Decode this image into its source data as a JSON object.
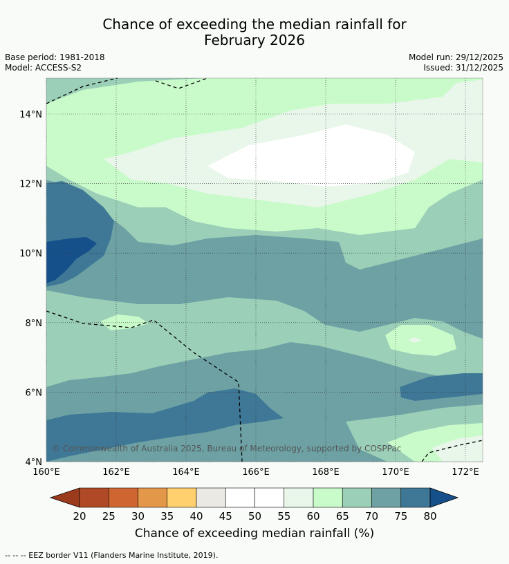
{
  "title_line1": "Chance of exceeding the median rainfall for",
  "title_line2": "February 2026",
  "base_period": "Base period: 1981-2018",
  "model": "Model: ACCESS-S2",
  "model_run": "Model run: 29/12/2025",
  "issued": "Issued: 31/12/2025",
  "copyright": "© Commonwealth of Australia 2025, Bureau of Meteorology, supported by COSPPac",
  "lat_labels": [
    "14°N",
    "12°N",
    "10°N",
    "8°N",
    "6°N",
    "4°N"
  ],
  "lat_values": [
    14,
    12,
    10,
    8,
    6,
    4
  ],
  "lon_labels": [
    "160°E",
    "162°E",
    "164°E",
    "166°E",
    "168°E",
    "170°E",
    "172°E"
  ],
  "lon_values": [
    160,
    162,
    164,
    166,
    168,
    170,
    172
  ],
  "colorbar": {
    "label": "Chance of exceeding median rainfall (%)",
    "ticks": [
      "20",
      "25",
      "30",
      "35",
      "40",
      "45",
      "50",
      "55",
      "60",
      "65",
      "70",
      "75",
      "80"
    ],
    "colors": [
      "#9c3a1c",
      "#b04a26",
      "#cf6632",
      "#e39748",
      "#ffd06d",
      "#ebe9e4",
      "#ffffff",
      "#ffffff",
      "#e9f6ea",
      "#c9fbca",
      "#9bcfb7",
      "#6da1a4",
      "#3e7896",
      "#16508a"
    ]
  },
  "legend_note": "--  --  -- EEZ border V11 (Flanders Marine Institute, 2019)."
}
